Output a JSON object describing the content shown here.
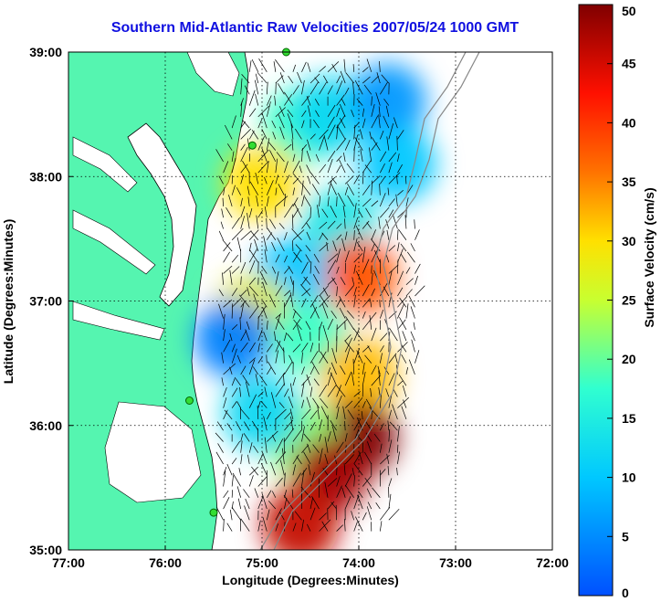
{
  "title": "Southern Mid-Atlantic Raw Velocities 2007/05/24 1000 GMT",
  "xlabel": "Longitude (Degrees:Minutes)",
  "ylabel": "Latitude (Degrees:Minutes)",
  "colorbar_label": "Surface Velocity (cm/s)",
  "x_ticks": [
    "77:00",
    "76:00",
    "75:00",
    "74:00",
    "73:00",
    "72:00"
  ],
  "y_ticks": [
    "39:00",
    "38:00",
    "37:00",
    "36:00",
    "35:00"
  ],
  "colorbar_ticks": [
    "50",
    "45",
    "40",
    "35",
    "30",
    "25",
    "20",
    "15",
    "10",
    "5",
    "0"
  ],
  "colors": {
    "land": "#55f5b0",
    "water": "#ffffff",
    "title": "#1010e0",
    "station": "#33dd33"
  },
  "chart_data": {
    "type": "heatmap",
    "title": "Southern Mid-Atlantic Raw Velocities 2007/05/24 1000 GMT",
    "xlabel": "Longitude (Degrees:Minutes)",
    "ylabel": "Latitude (Degrees:Minutes)",
    "xlim": [
      -77,
      -72
    ],
    "ylim": [
      35,
      39
    ],
    "clim": [
      0,
      50
    ],
    "colorbar_label": "Surface Velocity (cm/s)",
    "colormap": "jet",
    "grid": true,
    "regions": [
      {
        "lon": -74.6,
        "lat": 38.4,
        "speed": 18
      },
      {
        "lon": -74.3,
        "lat": 38.5,
        "speed": 12
      },
      {
        "lon": -73.7,
        "lat": 38.6,
        "speed": 6
      },
      {
        "lon": -73.6,
        "lat": 38.1,
        "speed": 10
      },
      {
        "lon": -75.0,
        "lat": 37.95,
        "speed": 30
      },
      {
        "lon": -74.2,
        "lat": 37.6,
        "speed": 14
      },
      {
        "lon": -74.0,
        "lat": 37.2,
        "speed": 38
      },
      {
        "lon": -74.7,
        "lat": 37.2,
        "speed": 10
      },
      {
        "lon": -75.1,
        "lat": 36.9,
        "speed": 28
      },
      {
        "lon": -75.3,
        "lat": 36.7,
        "speed": 4
      },
      {
        "lon": -74.5,
        "lat": 36.7,
        "speed": 18
      },
      {
        "lon": -74.0,
        "lat": 36.4,
        "speed": 32
      },
      {
        "lon": -74.0,
        "lat": 35.9,
        "speed": 50
      },
      {
        "lon": -74.6,
        "lat": 35.9,
        "speed": 22
      },
      {
        "lon": -75.0,
        "lat": 36.1,
        "speed": 12
      },
      {
        "lon": -74.3,
        "lat": 35.6,
        "speed": 48
      },
      {
        "lon": -74.6,
        "lat": 35.2,
        "speed": 46
      }
    ],
    "stations": [
      {
        "lon": -74.75,
        "lat": 39.0
      },
      {
        "lon": -75.1,
        "lat": 38.25
      },
      {
        "lon": -75.75,
        "lat": 36.2
      },
      {
        "lon": -75.5,
        "lat": 35.3
      }
    ]
  }
}
